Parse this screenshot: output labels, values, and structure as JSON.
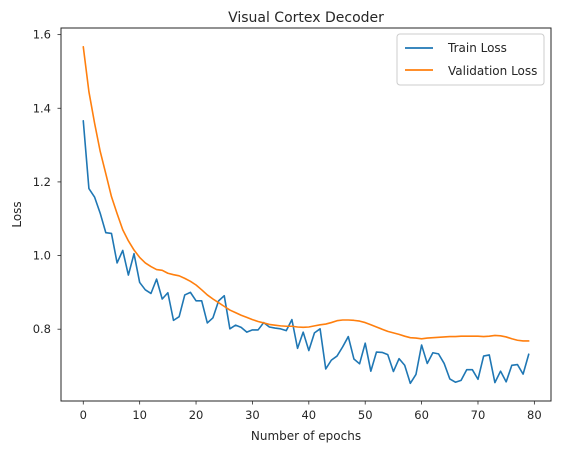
{
  "chart_data": {
    "type": "line",
    "title": "Visual Cortex Decoder",
    "xlabel": "Number of epochs",
    "ylabel": "Loss",
    "xlim": [
      -3.95,
      82.95
    ],
    "ylim": [
      0.605,
      1.618
    ],
    "xticks": [
      0,
      10,
      20,
      30,
      40,
      50,
      60,
      70,
      80
    ],
    "yticks": [
      0.8,
      1.0,
      1.2,
      1.4,
      1.6
    ],
    "ytick_labels": [
      "0.8",
      "1.0",
      "1.2",
      "1.4",
      "1.6"
    ],
    "grid": false,
    "legend_position": "top-right",
    "x": [
      0,
      1,
      2,
      3,
      4,
      5,
      6,
      7,
      8,
      9,
      10,
      11,
      12,
      13,
      14,
      15,
      16,
      17,
      18,
      19,
      20,
      21,
      22,
      23,
      24,
      25,
      26,
      27,
      28,
      29,
      30,
      31,
      32,
      33,
      34,
      35,
      36,
      37,
      38,
      39,
      40,
      41,
      42,
      43,
      44,
      45,
      46,
      47,
      48,
      49,
      50,
      51,
      52,
      53,
      54,
      55,
      56,
      57,
      58,
      59,
      60,
      61,
      62,
      63,
      64,
      65,
      66,
      67,
      68,
      69,
      70,
      71,
      72,
      73,
      74,
      75,
      76,
      77,
      78,
      79
    ],
    "series": [
      {
        "name": "Train Loss",
        "color": "#1f77b4",
        "values": [
          1.366,
          1.182,
          1.159,
          1.115,
          1.062,
          1.06,
          0.98,
          1.014,
          0.947,
          1.005,
          0.927,
          0.907,
          0.897,
          0.936,
          0.882,
          0.899,
          0.824,
          0.834,
          0.893,
          0.9,
          0.877,
          0.877,
          0.817,
          0.831,
          0.877,
          0.891,
          0.801,
          0.811,
          0.805,
          0.792,
          0.798,
          0.798,
          0.818,
          0.806,
          0.803,
          0.801,
          0.796,
          0.826,
          0.748,
          0.792,
          0.742,
          0.79,
          0.801,
          0.692,
          0.716,
          0.727,
          0.752,
          0.78,
          0.719,
          0.706,
          0.762,
          0.686,
          0.738,
          0.737,
          0.731,
          0.685,
          0.72,
          0.702,
          0.653,
          0.677,
          0.757,
          0.707,
          0.736,
          0.733,
          0.707,
          0.665,
          0.656,
          0.661,
          0.69,
          0.69,
          0.664,
          0.727,
          0.73,
          0.655,
          0.686,
          0.657,
          0.702,
          0.704,
          0.678,
          0.732
        ]
      },
      {
        "name": "Validation Loss",
        "color": "#ff7f0e",
        "values": [
          1.567,
          1.445,
          1.36,
          1.283,
          1.222,
          1.16,
          1.114,
          1.07,
          1.04,
          1.015,
          0.995,
          0.98,
          0.97,
          0.962,
          0.96,
          0.952,
          0.948,
          0.945,
          0.938,
          0.93,
          0.92,
          0.907,
          0.893,
          0.882,
          0.872,
          0.862,
          0.852,
          0.845,
          0.838,
          0.832,
          0.826,
          0.821,
          0.817,
          0.813,
          0.811,
          0.809,
          0.808,
          0.808,
          0.806,
          0.805,
          0.806,
          0.809,
          0.812,
          0.814,
          0.818,
          0.823,
          0.825,
          0.825,
          0.824,
          0.822,
          0.818,
          0.812,
          0.806,
          0.8,
          0.794,
          0.79,
          0.786,
          0.781,
          0.777,
          0.776,
          0.774,
          0.776,
          0.777,
          0.778,
          0.779,
          0.78,
          0.78,
          0.781,
          0.781,
          0.781,
          0.781,
          0.78,
          0.781,
          0.783,
          0.782,
          0.779,
          0.774,
          0.77,
          0.768,
          0.768
        ]
      }
    ]
  }
}
